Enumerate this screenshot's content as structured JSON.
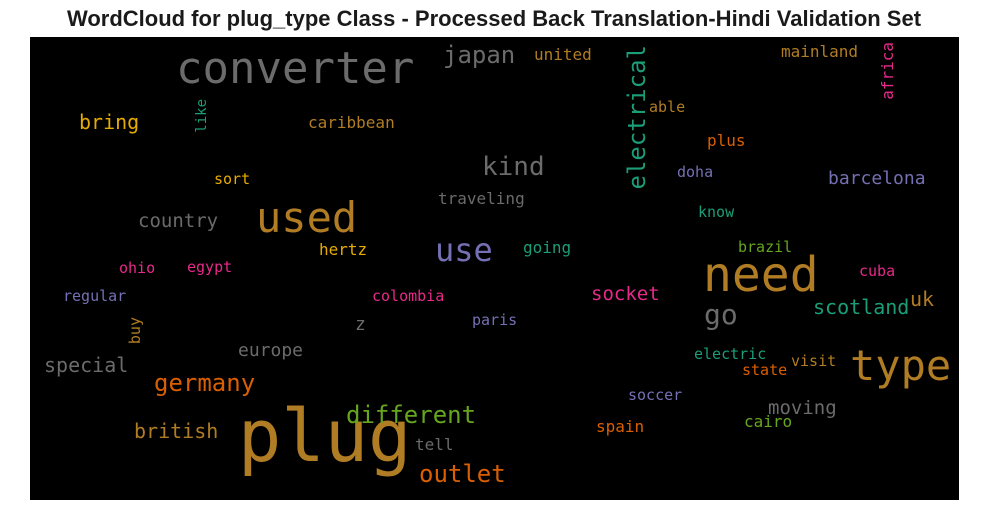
{
  "title": "WordCloud for plug_type Class - Processed Back Translation-Hindi Validation Set",
  "words": {
    "plug": "plug",
    "converter": "converter",
    "need": "need",
    "type": "type",
    "used": "used",
    "use": "use",
    "electrical": "electrical",
    "germany": "germany",
    "outlet": "outlet",
    "different": "different",
    "kind": "kind",
    "go": "go",
    "japan": "japan",
    "socket": "socket",
    "scotland": "scotland",
    "barcelona": "barcelona",
    "bring": "bring",
    "special": "special",
    "british": "british",
    "country": "country",
    "europe": "europe",
    "moving": "moving",
    "uk": "uk",
    "united": "united",
    "mainland": "mainland",
    "africa": "africa",
    "able": "able",
    "plus": "plus",
    "caribbean": "caribbean",
    "like": "like",
    "sort": "sort",
    "doha": "doha",
    "traveling": "traveling",
    "know": "know",
    "hertz": "hertz",
    "going": "going",
    "brazil": "brazil",
    "ohio": "ohio",
    "egypt": "egypt",
    "cuba": "cuba",
    "regular": "regular",
    "colombia": "colombia",
    "buy": "buy",
    "z": "z",
    "paris": "paris",
    "electric": "electric",
    "visit": "visit",
    "state": "state",
    "soccer": "soccer",
    "tell": "tell",
    "spain": "spain",
    "cairo": "cairo"
  },
  "colors": {
    "gold": "#b07d24",
    "gray": "#6b6b6b",
    "green": "#1b9e77",
    "orange": "#d95f02",
    "purple": "#7570b3",
    "pink": "#e7298a",
    "lime": "#66a61e",
    "yellow": "#e6ab02"
  }
}
